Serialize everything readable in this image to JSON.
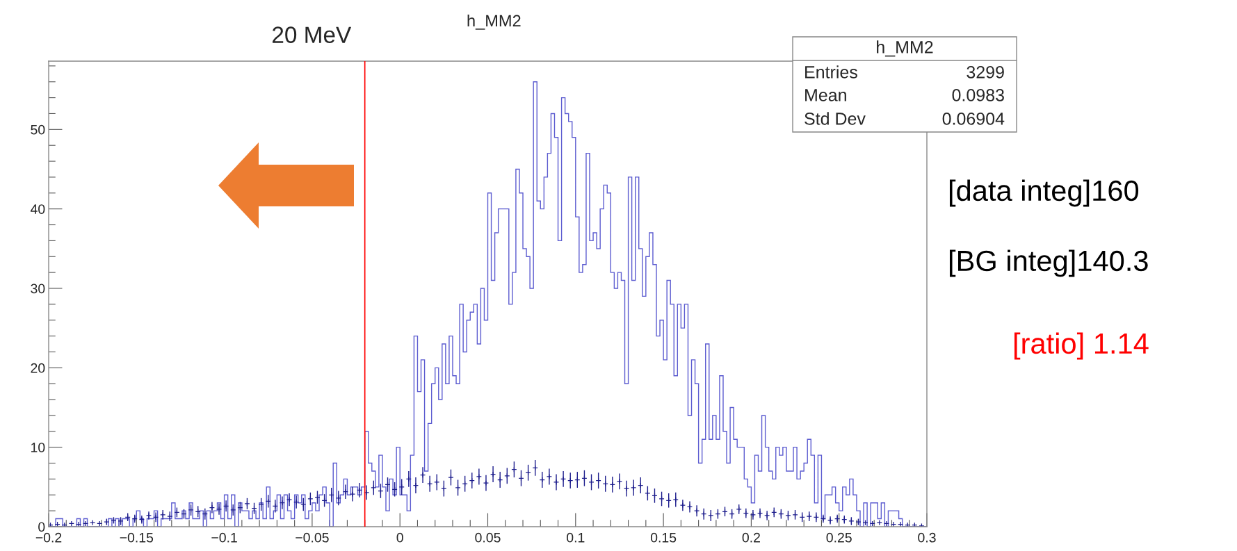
{
  "chart_data": {
    "type": "histogram",
    "title": "h_MM2",
    "xlim": [
      -0.2,
      0.3
    ],
    "ylim": [
      0,
      58.6
    ],
    "xticks": [
      {
        "value": -0.2,
        "label": "−0.2"
      },
      {
        "value": -0.15,
        "label": "−0.15"
      },
      {
        "value": -0.1,
        "label": "−0.1"
      },
      {
        "value": -0.05,
        "label": "−0.05"
      },
      0,
      0.05,
      0.1,
      0.15,
      0.2,
      0.25,
      0.3
    ],
    "yticks": [
      0,
      10,
      20,
      30,
      40,
      50
    ],
    "ref_lines": [
      {
        "axis": "x",
        "value": -0.02,
        "label": "20 MeV",
        "color": "#ff0000"
      }
    ],
    "annotations": [
      "h_MM2",
      "Entries",
      "3299",
      "Mean",
      "0.0983",
      "Std Dev",
      "0.06904",
      "[data integ]160",
      "[BG integ]140.3",
      "[ratio] 1.14"
    ],
    "series": [
      {
        "type": "histogram",
        "color": "#5c5cd0",
        "bins": [
          -0.2,
          -0.198,
          -0.196,
          -0.194,
          -0.192,
          -0.19,
          -0.188,
          -0.186,
          -0.184,
          -0.182,
          -0.18,
          -0.178,
          -0.176,
          -0.174,
          -0.172,
          -0.17,
          -0.168,
          -0.166,
          -0.164,
          -0.162,
          -0.16,
          -0.158,
          -0.156,
          -0.154,
          -0.152,
          -0.15,
          -0.148,
          -0.146,
          -0.144,
          -0.142,
          -0.14,
          -0.138,
          -0.136,
          -0.134,
          -0.132,
          -0.13,
          -0.128,
          -0.126,
          -0.124,
          -0.122,
          -0.12,
          -0.118,
          -0.116,
          -0.114,
          -0.112,
          -0.11,
          -0.108,
          -0.106,
          -0.104,
          -0.102,
          -0.1,
          -0.098,
          -0.096,
          -0.094,
          -0.092,
          -0.09,
          -0.088,
          -0.086,
          -0.084,
          -0.082,
          -0.08,
          -0.078,
          -0.076,
          -0.074,
          -0.072,
          -0.07,
          -0.068,
          -0.066,
          -0.064,
          -0.062,
          -0.06,
          -0.058,
          -0.056,
          -0.054,
          -0.052,
          -0.05,
          -0.048,
          -0.046,
          -0.044,
          -0.042,
          -0.04,
          -0.038,
          -0.036,
          -0.034,
          -0.032,
          -0.03,
          -0.028,
          -0.026,
          -0.024,
          -0.022,
          -0.02,
          -0.018,
          -0.016,
          -0.014,
          -0.012,
          -0.01,
          -0.008,
          -0.006,
          -0.004,
          -0.002,
          0,
          0.002,
          0.004,
          0.006,
          0.008,
          0.01,
          0.012,
          0.014,
          0.016,
          0.018,
          0.02,
          0.022,
          0.024,
          0.026,
          0.028,
          0.03,
          0.032,
          0.034,
          0.036,
          0.038,
          0.04,
          0.042,
          0.044,
          0.046,
          0.048,
          0.05,
          0.052,
          0.054,
          0.056,
          0.058,
          0.06,
          0.062,
          0.064,
          0.066,
          0.068,
          0.07,
          0.072,
          0.074,
          0.076,
          0.078,
          0.08,
          0.082,
          0.084,
          0.086,
          0.088,
          0.09,
          0.092,
          0.094,
          0.096,
          0.098,
          0.1,
          0.102,
          0.104,
          0.106,
          0.108,
          0.11,
          0.112,
          0.114,
          0.116,
          0.118,
          0.12,
          0.122,
          0.124,
          0.126,
          0.128,
          0.13,
          0.132,
          0.134,
          0.136,
          0.138,
          0.14,
          0.142,
          0.144,
          0.146,
          0.148,
          0.15,
          0.152,
          0.154,
          0.156,
          0.158,
          0.16,
          0.162,
          0.164,
          0.166,
          0.168,
          0.17,
          0.172,
          0.174,
          0.176,
          0.178,
          0.18,
          0.182,
          0.184,
          0.186,
          0.188,
          0.19,
          0.192,
          0.194,
          0.196,
          0.198,
          0.2,
          0.202,
          0.204,
          0.206,
          0.208,
          0.21,
          0.212,
          0.214,
          0.216,
          0.218,
          0.22,
          0.222,
          0.224,
          0.226,
          0.228,
          0.23,
          0.232,
          0.234,
          0.236,
          0.238,
          0.24,
          0.242,
          0.244,
          0.246,
          0.248,
          0.25,
          0.252,
          0.254,
          0.256,
          0.258,
          0.26,
          0.262,
          0.264,
          0.266,
          0.268,
          0.27,
          0.272,
          0.274,
          0.276,
          0.278,
          0.28,
          0.282,
          0.284,
          0.286,
          0.288,
          0.29,
          0.292,
          0.294,
          0.296,
          0.298,
          0.3
        ],
        "values": [
          0,
          0,
          1,
          1,
          0,
          0,
          0,
          0,
          1,
          0,
          1,
          0,
          0,
          0,
          0,
          0,
          0,
          1,
          0,
          1,
          0,
          1,
          1,
          0,
          1,
          2,
          1,
          0,
          1,
          1,
          2,
          0,
          1,
          1,
          1,
          3,
          1,
          1,
          2,
          1,
          3,
          1,
          1,
          2,
          0,
          2,
          1,
          2,
          3,
          1,
          4,
          1,
          4,
          0,
          3,
          2,
          2,
          1,
          2,
          1,
          3,
          1,
          5,
          1,
          2,
          4,
          1,
          4,
          2,
          1,
          4,
          3,
          4,
          1,
          2,
          3,
          2,
          4,
          5,
          3,
          0,
          8,
          3,
          4,
          6,
          4,
          5,
          5,
          4,
          5,
          12,
          8,
          7,
          5,
          9,
          5,
          2,
          6,
          4,
          10,
          4,
          4,
          2,
          9,
          24,
          17,
          21,
          7,
          13,
          18,
          20,
          16,
          23,
          18,
          24,
          19,
          18,
          28,
          22,
          26,
          27,
          28,
          23,
          30,
          26,
          42,
          31,
          37,
          40,
          40,
          40,
          28,
          32,
          45,
          42,
          35,
          34,
          30,
          56,
          41,
          40,
          44,
          47,
          52,
          49,
          36,
          54,
          52,
          51,
          49,
          39,
          32,
          33,
          47,
          36,
          37,
          35,
          40,
          43,
          42,
          32,
          30,
          32,
          31,
          18,
          44,
          31,
          44,
          35,
          29,
          34,
          37,
          33,
          24,
          26,
          21,
          31,
          28,
          19,
          28,
          25,
          28,
          14,
          21,
          18,
          8,
          11,
          23,
          11,
          14,
          11,
          19,
          12,
          8,
          15,
          11,
          10,
          10,
          6,
          5,
          3,
          9,
          7,
          14,
          10,
          7,
          6,
          10,
          9,
          10,
          7,
          7,
          10,
          6,
          7,
          8,
          11,
          9,
          3,
          9,
          1,
          4,
          4,
          5,
          3,
          2,
          5,
          4,
          6,
          4,
          2,
          0,
          3,
          0,
          3,
          3,
          1,
          3,
          0,
          2,
          2,
          2,
          1,
          0,
          0,
          0,
          0,
          0,
          0,
          0
        ]
      },
      {
        "type": "scatter",
        "color": "#1c1c8c",
        "marker": "cross",
        "x": [
          -0.199,
          -0.195,
          -0.191,
          -0.187,
          -0.183,
          -0.179,
          -0.175,
          -0.171,
          -0.167,
          -0.163,
          -0.159,
          -0.155,
          -0.151,
          -0.147,
          -0.143,
          -0.139,
          -0.135,
          -0.131,
          -0.127,
          -0.123,
          -0.119,
          -0.115,
          -0.111,
          -0.107,
          -0.103,
          -0.099,
          -0.095,
          -0.091,
          -0.087,
          -0.083,
          -0.079,
          -0.075,
          -0.071,
          -0.067,
          -0.063,
          -0.059,
          -0.055,
          -0.051,
          -0.047,
          -0.043,
          -0.039,
          -0.035,
          -0.031,
          -0.027,
          -0.023,
          -0.019,
          -0.015,
          -0.011,
          -0.007,
          -0.003,
          0.001,
          0.005,
          0.009,
          0.013,
          0.017,
          0.021,
          0.025,
          0.029,
          0.033,
          0.037,
          0.041,
          0.045,
          0.049,
          0.053,
          0.057,
          0.061,
          0.065,
          0.069,
          0.073,
          0.077,
          0.081,
          0.085,
          0.089,
          0.093,
          0.097,
          0.101,
          0.105,
          0.109,
          0.113,
          0.117,
          0.121,
          0.125,
          0.129,
          0.133,
          0.137,
          0.141,
          0.145,
          0.149,
          0.153,
          0.157,
          0.161,
          0.165,
          0.169,
          0.173,
          0.177,
          0.181,
          0.185,
          0.189,
          0.193,
          0.197,
          0.201,
          0.205,
          0.209,
          0.213,
          0.217,
          0.221,
          0.225,
          0.229,
          0.233,
          0.237,
          0.241,
          0.245,
          0.249,
          0.253,
          0.257,
          0.261,
          0.265,
          0.269,
          0.273,
          0.277,
          0.281,
          0.285,
          0.289,
          0.293,
          0.297
        ],
        "values": [
          0.2,
          0.3,
          0.2,
          0.4,
          0.3,
          0.4,
          0.5,
          0.4,
          0.6,
          0.8,
          0.7,
          1.2,
          1.0,
          0.9,
          1.4,
          1.2,
          1.5,
          1.3,
          1.8,
          1.6,
          2.1,
          1.9,
          1.6,
          2.4,
          2.2,
          2.6,
          2.1,
          2.4,
          2.9,
          2.3,
          2.8,
          3.2,
          2.6,
          3.0,
          3.4,
          3.1,
          2.8,
          3.5,
          3.7,
          3.3,
          4.0,
          3.6,
          4.4,
          4.1,
          4.6,
          4.3,
          4.9,
          4.5,
          5.3,
          4.7,
          5.0,
          6.0,
          5.2,
          6.5,
          5.4,
          5.6,
          4.8,
          6.2,
          4.9,
          5.4,
          5.8,
          6.3,
          5.5,
          6.6,
          5.9,
          6.4,
          7.2,
          6.1,
          6.8,
          7.4,
          5.9,
          6.3,
          5.6,
          6.0,
          5.8,
          5.9,
          6.1,
          5.6,
          5.8,
          5.4,
          5.3,
          5.7,
          4.8,
          4.9,
          5.2,
          4.2,
          3.9,
          3.5,
          3.3,
          3.4,
          2.7,
          2.5,
          2.0,
          1.6,
          1.4,
          1.6,
          1.9,
          1.6,
          2.2,
          1.7,
          1.5,
          1.7,
          1.4,
          1.8,
          1.6,
          1.4,
          1.5,
          1.2,
          1.3,
          1.2,
          1.0,
          0.8,
          1.0,
          0.9,
          0.7,
          0.6,
          0.5,
          0.4,
          0.5,
          0.4,
          0.3,
          0.3,
          0.2,
          0.2,
          0.1
        ],
        "errors": [
          null,
          null,
          null,
          null,
          null,
          null,
          null,
          null,
          0.4,
          0.4,
          0.5,
          0.5,
          0.5,
          0.5,
          0.5,
          0.6,
          0.6,
          0.6,
          0.6,
          0.6,
          0.7,
          0.7,
          0.7,
          0.7,
          0.7,
          0.7,
          0.7,
          0.7,
          0.7,
          0.7,
          0.8,
          0.8,
          0.8,
          0.8,
          0.8,
          0.8,
          0.8,
          0.8,
          0.8,
          0.8,
          0.9,
          0.9,
          0.9,
          0.9,
          0.9,
          0.9,
          0.9,
          0.9,
          0.9,
          0.9,
          1,
          1,
          1,
          1,
          1,
          1,
          1,
          1,
          1,
          1,
          1,
          1,
          1,
          1,
          1,
          1,
          1,
          1,
          1,
          1,
          1,
          1,
          1,
          1,
          1,
          1,
          1,
          1,
          1,
          1,
          1,
          1,
          1,
          1,
          1,
          0.9,
          0.9,
          0.9,
          0.9,
          0.9,
          0.7,
          0.7,
          0.7,
          0.7,
          0.7,
          0.6,
          0.6,
          0.6,
          0.6,
          0.6,
          0.6,
          0.6,
          0.6,
          0.6,
          0.6,
          0.6,
          0.6,
          0.6,
          0.6,
          0.6,
          0.5,
          0.5,
          0.5,
          0.5,
          0.5,
          0.4,
          null,
          null,
          null,
          null,
          null,
          null,
          null,
          null,
          null
        ]
      }
    ]
  }
}
